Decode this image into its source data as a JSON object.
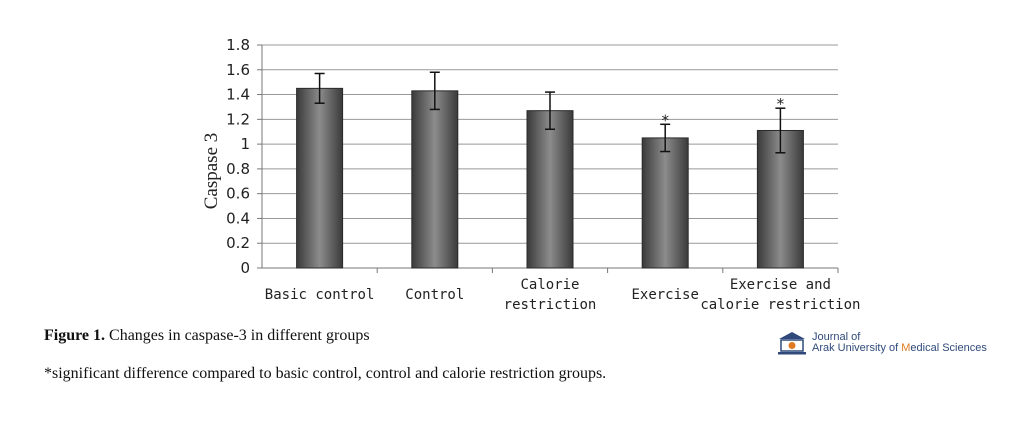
{
  "chart_data": {
    "type": "bar",
    "ylabel": "Caspase 3",
    "ylim": [
      0,
      1.8
    ],
    "yticks": [
      "0",
      "0.2",
      "0.4",
      "0.6",
      "0.8",
      "1",
      "1.2",
      "1.4",
      "1.6",
      "1.8"
    ],
    "grid": true,
    "categories": [
      [
        "Basic control"
      ],
      [
        "Control"
      ],
      [
        "Calorie",
        "restriction"
      ],
      [
        "Exercise"
      ],
      [
        "Exercise and",
        "calorie restriction"
      ]
    ],
    "values": [
      1.45,
      1.43,
      1.27,
      1.05,
      1.11
    ],
    "error": [
      0.12,
      0.15,
      0.15,
      0.11,
      0.18
    ],
    "significance": [
      "",
      "",
      "",
      "*",
      "*"
    ]
  },
  "caption": {
    "label": "Figure 1.",
    "text": " Changes in caspase-3 in different groups"
  },
  "footnote": "*significant difference compared to basic control, control and calorie restriction groups.",
  "journal": {
    "line1": "Journal of",
    "line2_prefix": "Arak University of ",
    "line2_m": "M",
    "line2_suffix": "edical Sciences"
  },
  "colors": {
    "bar_dark": "#3a3a3a",
    "bar_light": "#8c8c8c",
    "grid": "#999999",
    "journal": "#2f4a7a",
    "accent": "#e07a20"
  }
}
